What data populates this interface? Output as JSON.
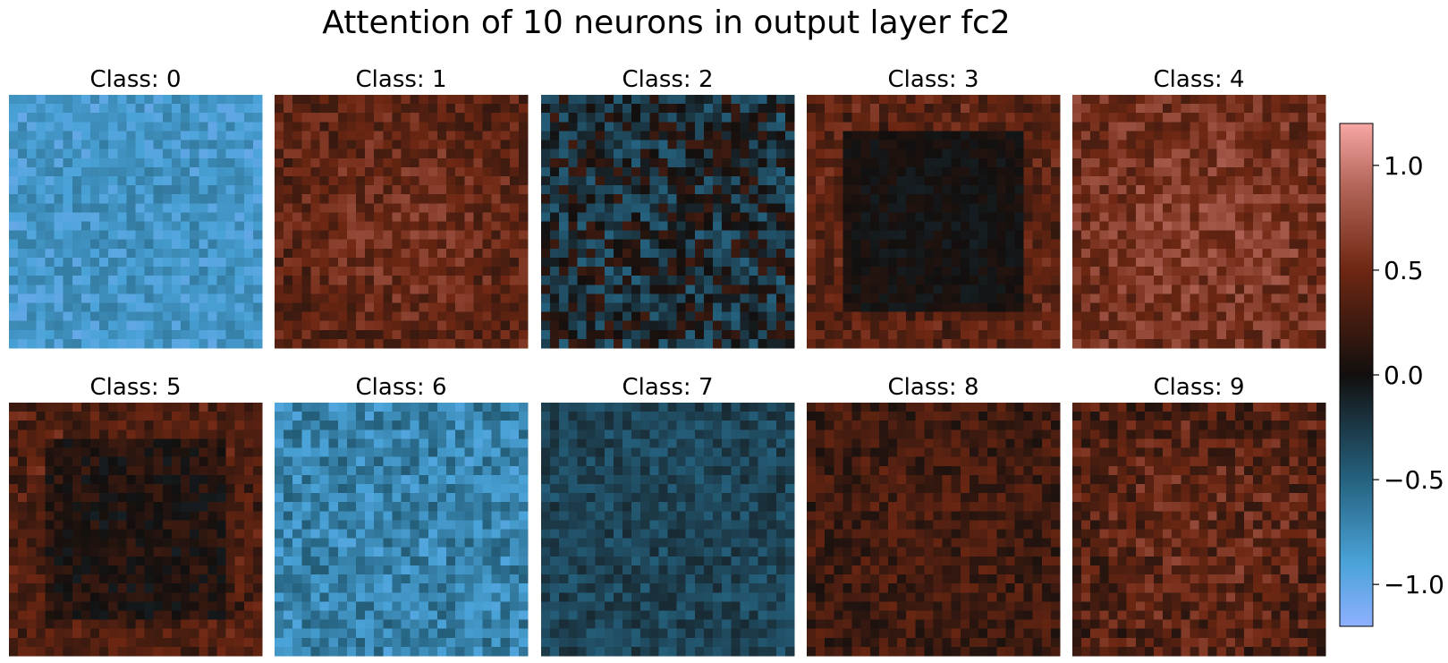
{
  "chart_data": {
    "type": "heatmap",
    "title": "Attention of 10 neurons in output layer fc2",
    "grid_size": [
      28,
      28
    ],
    "grid": false,
    "colormap": {
      "name": "diverging blue-black-red",
      "stops": [
        {
          "v": -1.2,
          "color": "#8fb0ff"
        },
        {
          "v": -0.9,
          "color": "#4aa3d8"
        },
        {
          "v": -0.5,
          "color": "#25627f"
        },
        {
          "v": 0.0,
          "color": "#120f0e"
        },
        {
          "v": 0.5,
          "color": "#6e2712"
        },
        {
          "v": 0.9,
          "color": "#b26558"
        },
        {
          "v": 1.2,
          "color": "#f7a6a4"
        }
      ]
    },
    "colorbar": {
      "vmin": -1.2,
      "vmax": 1.2,
      "ticks": [
        -1.0,
        -0.5,
        0.0,
        0.5,
        1.0
      ],
      "tick_labels": [
        "−1.0",
        "−0.5",
        "0.0",
        "0.5",
        "1.0"
      ],
      "placement": "right"
    },
    "panels": [
      {
        "title": "Class: 0",
        "mean": -0.85,
        "spread": 0.17,
        "edge_boost": 0.0,
        "center_boost": 0.05
      },
      {
        "title": "Class: 1",
        "mean": 0.4,
        "spread": 0.22,
        "edge_boost": 0.0,
        "center_boost": 0.12
      },
      {
        "title": "Class: 2",
        "mean": -0.12,
        "spread": 0.38,
        "edge_boost": 0.0,
        "center_boost": 0.0
      },
      {
        "title": "Class: 3",
        "mean": 0.04,
        "spread": 0.09,
        "edge_boost": 0.45,
        "center_boost": -0.05
      },
      {
        "title": "Class: 4",
        "mean": 0.52,
        "spread": 0.24,
        "edge_boost": 0.0,
        "center_boost": 0.12
      },
      {
        "title": "Class: 5",
        "mean": 0.12,
        "spread": 0.16,
        "edge_boost": 0.28,
        "center_boost": -0.06
      },
      {
        "title": "Class: 6",
        "mean": -0.7,
        "spread": 0.24,
        "edge_boost": 0.0,
        "center_boost": 0.0
      },
      {
        "title": "Class: 7",
        "mean": -0.32,
        "spread": 0.16,
        "edge_boost": 0.0,
        "center_boost": 0.0
      },
      {
        "title": "Class: 8",
        "mean": 0.24,
        "spread": 0.2,
        "edge_boost": 0.0,
        "center_boost": 0.05
      },
      {
        "title": "Class: 9",
        "mean": 0.34,
        "spread": 0.27,
        "edge_boost": 0.0,
        "center_boost": 0.12
      }
    ]
  }
}
